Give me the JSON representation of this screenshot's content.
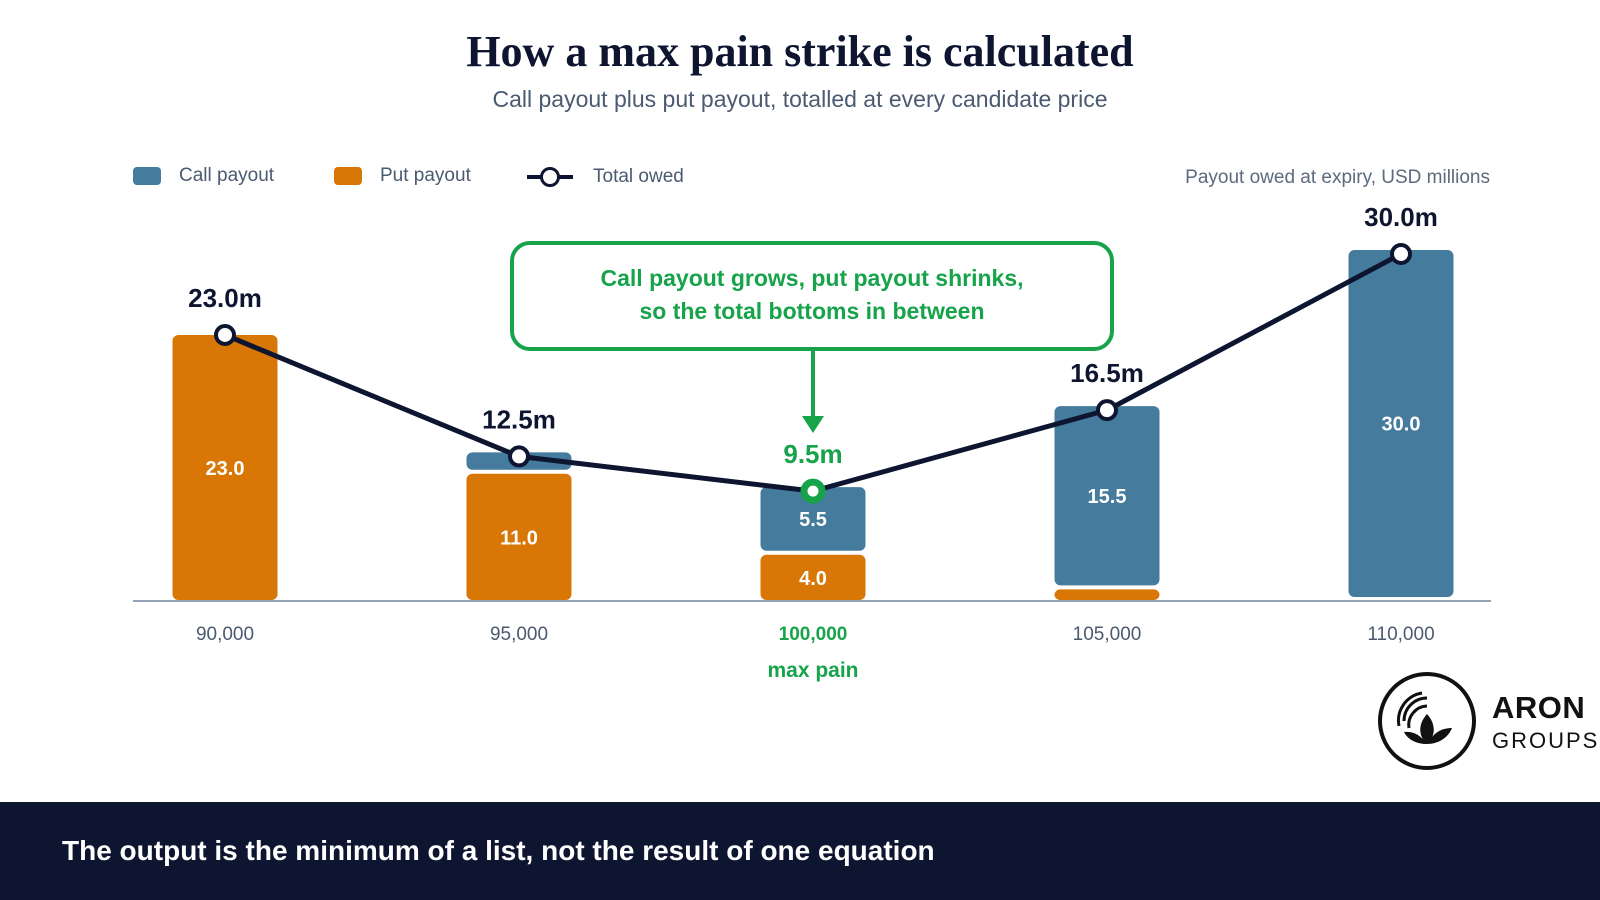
{
  "header": {
    "title": "How a max pain strike is calculated",
    "subtitle": "Call payout plus put payout, totalled at every candidate price"
  },
  "legend": {
    "call_label": "Call payout",
    "put_label": "Put payout",
    "total_label": "Total owed"
  },
  "units_label": "Payout owed at expiry, USD millions",
  "colors": {
    "call": "#457b9d",
    "put": "#d97706",
    "line": "#0d1530",
    "highlight": "#16a34a",
    "axis": "#94a3b8"
  },
  "annotation": {
    "line1": "Call payout grows, put payout shrinks,",
    "line2": "so the total bottoms in between"
  },
  "max_pain_label": "max pain",
  "chart_data": {
    "type": "bar",
    "stacked": true,
    "categories": [
      "90,000",
      "95,000",
      "100,000",
      "105,000",
      "110,000"
    ],
    "series": [
      {
        "name": "Put payout",
        "values": [
          23.0,
          11.0,
          4.0,
          1.0,
          0.0
        ]
      },
      {
        "name": "Call payout",
        "values": [
          0.0,
          1.5,
          5.5,
          15.5,
          30.0
        ]
      }
    ],
    "segment_labels": {
      "put": [
        "23.0",
        "11.0",
        "4.0",
        "",
        ""
      ],
      "call": [
        "",
        "",
        "5.5",
        "15.5",
        "30.0"
      ]
    },
    "total": {
      "name": "Total owed",
      "values": [
        23.0,
        12.5,
        9.5,
        16.5,
        30.0
      ],
      "labels": [
        "23.0m",
        "12.5m",
        "9.5m",
        "16.5m",
        "30.0m"
      ]
    },
    "highlight_index": 2,
    "ylim": [
      0,
      30
    ],
    "ylabel": "Payout owed at expiry, USD millions",
    "legend_position": "top-left"
  },
  "footer": {
    "text": "The output is the minimum of a list, not the result of one equation"
  },
  "logo": {
    "word": "ARON",
    "sub": "GROUPS"
  }
}
